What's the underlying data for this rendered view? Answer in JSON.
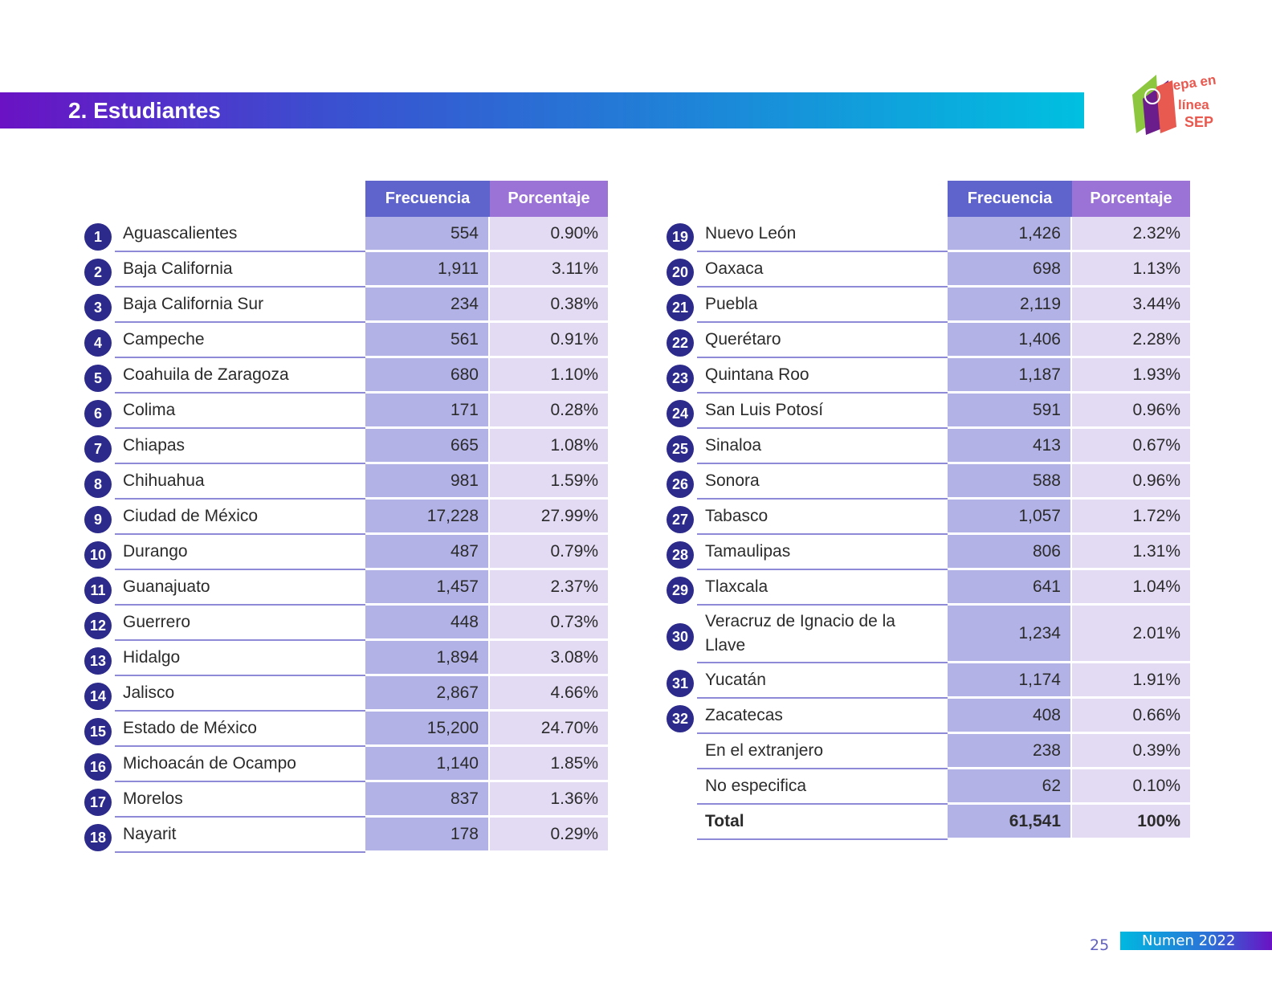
{
  "header": {
    "title": "2. Estudiantes"
  },
  "logo": {
    "text": "Prepa en línea SEP"
  },
  "columns": {
    "freq": "Frecuencia",
    "pct": "Porcentaje"
  },
  "left_rows": [
    {
      "n": "1",
      "name": "Aguascalientes",
      "f": "554",
      "p": "0.90%"
    },
    {
      "n": "2",
      "name": "Baja California",
      "f": "1,911",
      "p": "3.11%"
    },
    {
      "n": "3",
      "name": "Baja California Sur",
      "f": "234",
      "p": "0.38%"
    },
    {
      "n": "4",
      "name": "Campeche",
      "f": "561",
      "p": "0.91%"
    },
    {
      "n": "5",
      "name": "Coahuila de Zaragoza",
      "f": "680",
      "p": "1.10%"
    },
    {
      "n": "6",
      "name": "Colima",
      "f": "171",
      "p": "0.28%"
    },
    {
      "n": "7",
      "name": "Chiapas",
      "f": "665",
      "p": "1.08%"
    },
    {
      "n": "8",
      "name": "Chihuahua",
      "f": "981",
      "p": "1.59%"
    },
    {
      "n": "9",
      "name": "Ciudad de México",
      "f": "17,228",
      "p": "27.99%"
    },
    {
      "n": "10",
      "name": "Durango",
      "f": "487",
      "p": "0.79%"
    },
    {
      "n": "11",
      "name": "Guanajuato",
      "f": "1,457",
      "p": "2.37%"
    },
    {
      "n": "12",
      "name": "Guerrero",
      "f": "448",
      "p": "0.73%"
    },
    {
      "n": "13",
      "name": "Hidalgo",
      "f": "1,894",
      "p": "3.08%"
    },
    {
      "n": "14",
      "name": "Jalisco",
      "f": "2,867",
      "p": "4.66%"
    },
    {
      "n": "15",
      "name": "Estado de México",
      "f": "15,200",
      "p": "24.70%"
    },
    {
      "n": "16",
      "name": "Michoacán de Ocampo",
      "f": "1,140",
      "p": "1.85%"
    },
    {
      "n": "17",
      "name": "Morelos",
      "f": "837",
      "p": "1.36%"
    },
    {
      "n": "18",
      "name": "Nayarit",
      "f": "178",
      "p": "0.29%"
    }
  ],
  "right_rows": [
    {
      "n": "19",
      "name": "Nuevo León",
      "f": "1,426",
      "p": "2.32%"
    },
    {
      "n": "20",
      "name": "Oaxaca",
      "f": "698",
      "p": "1.13%"
    },
    {
      "n": "21",
      "name": "Puebla",
      "f": "2,119",
      "p": "3.44%"
    },
    {
      "n": "22",
      "name": "Querétaro",
      "f": "1,406",
      "p": "2.28%"
    },
    {
      "n": "23",
      "name": "Quintana Roo",
      "f": "1,187",
      "p": "1.93%"
    },
    {
      "n": "24",
      "name": "San Luis Potosí",
      "f": "591",
      "p": "0.96%"
    },
    {
      "n": "25",
      "name": "Sinaloa",
      "f": "413",
      "p": "0.67%"
    },
    {
      "n": "26",
      "name": "Sonora",
      "f": "588",
      "p": "0.96%"
    },
    {
      "n": "27",
      "name": "Tabasco",
      "f": "1,057",
      "p": "1.72%"
    },
    {
      "n": "28",
      "name": "Tamaulipas",
      "f": "806",
      "p": "1.31%"
    },
    {
      "n": "29",
      "name": "Tlaxcala",
      "f": "641",
      "p": "1.04%"
    },
    {
      "n": "30",
      "name": "Veracruz de Ignacio de la Llave",
      "f": "1,234",
      "p": "2.01%"
    },
    {
      "n": "31",
      "name": "Yucatán",
      "f": "1,174",
      "p": "1.91%"
    },
    {
      "n": "32",
      "name": "Zacatecas",
      "f": "408",
      "p": "0.66%"
    },
    {
      "n": "",
      "name": "En el extranjero",
      "f": "238",
      "p": "0.39%"
    },
    {
      "n": "",
      "name": "No especifica",
      "f": "62",
      "p": "0.10%"
    },
    {
      "n": "",
      "name": "Total",
      "f": "61,541",
      "p": "100%",
      "total": true
    }
  ],
  "footer": {
    "page": "25",
    "publication": "Numen 2022"
  }
}
